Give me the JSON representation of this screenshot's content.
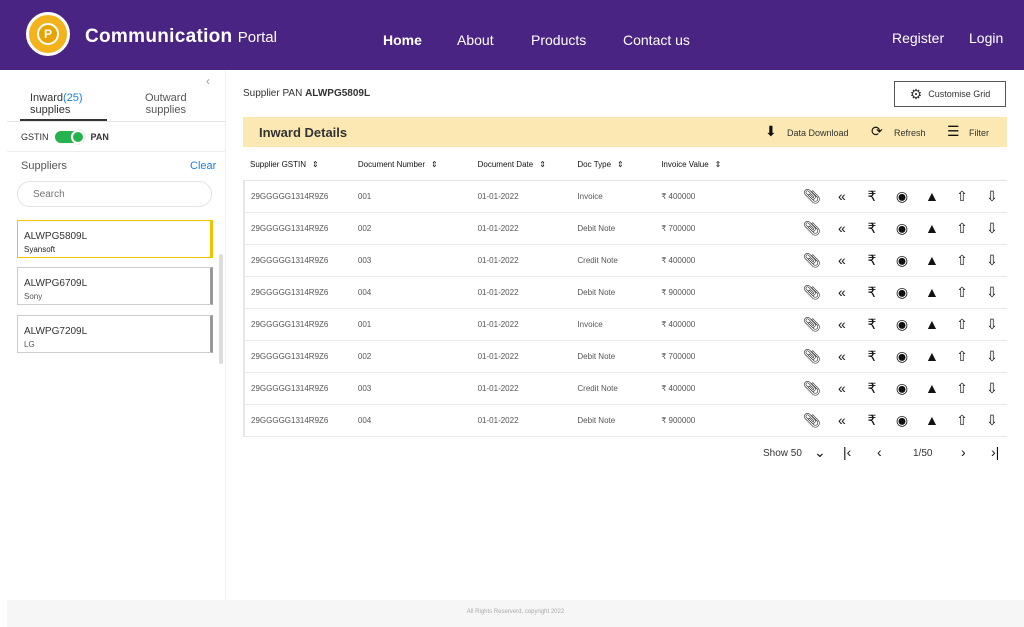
{
  "header": {
    "logo_letter": "P",
    "brand_bold": "Communication",
    "brand_rest": "Portal",
    "nav": [
      "Home",
      "About",
      "Products",
      "Contact us"
    ],
    "register": "Register",
    "login": "Login"
  },
  "sidebar": {
    "collapse_icon": "chevron-left-icon",
    "tab_inward": "Inward",
    "tab_inward_count": "(25)",
    "tab_inward_sub": "supplies",
    "tab_outward": "Outward",
    "tab_outward_sub": "supplies",
    "toggle_left": "GSTIN",
    "toggle_right": "PAN",
    "suppliers_label": "Suppliers",
    "clear_label": "Clear",
    "search_placeholder": "Search",
    "cards": [
      {
        "pan": "ALWPG5809L",
        "name": "Syansoft"
      },
      {
        "pan": "ALWPG6709L",
        "name": "Sony"
      },
      {
        "pan": "ALWPG7209L",
        "name": "LG"
      }
    ]
  },
  "main": {
    "supplier_pan_label": "Supplier PAN",
    "supplier_pan_value": "ALWPG5809L",
    "customise_label": "Customise Grid",
    "section_title": "Inward Details",
    "data_download": "Data Download",
    "refresh": "Refresh",
    "filter": "Filter",
    "columns": [
      "Supplier GSTIN",
      "Document Number",
      "Document Date",
      "Doc Type",
      "Invoice Value"
    ],
    "rows": [
      {
        "gstin": "29GGGGG1314R9Z6",
        "doc_no": "001",
        "date": "01-01-2022",
        "type": "Invoice",
        "value": "₹ 400000"
      },
      {
        "gstin": "29GGGGG1314R9Z6",
        "doc_no": "002",
        "date": "01-01-2022",
        "type": "Debit Note",
        "value": "₹ 700000"
      },
      {
        "gstin": "29GGGGG1314R9Z6",
        "doc_no": "003",
        "date": "01-01-2022",
        "type": "Credit Note",
        "value": "₹ 400000"
      },
      {
        "gstin": "29GGGGG1314R9Z6",
        "doc_no": "004",
        "date": "01-01-2022",
        "type": "Debit Note",
        "value": "₹ 900000"
      },
      {
        "gstin": "29GGGGG1314R9Z6",
        "doc_no": "001",
        "date": "01-01-2022",
        "type": "Invoice",
        "value": "₹ 400000"
      },
      {
        "gstin": "29GGGGG1314R9Z6",
        "doc_no": "002",
        "date": "01-01-2022",
        "type": "Debit Note",
        "value": "₹ 700000"
      },
      {
        "gstin": "29GGGGG1314R9Z6",
        "doc_no": "003",
        "date": "01-01-2022",
        "type": "Credit Note",
        "value": "₹ 400000"
      },
      {
        "gstin": "29GGGGG1314R9Z6",
        "doc_no": "004",
        "date": "01-01-2022",
        "type": "Debit Note",
        "value": "₹ 900000"
      }
    ],
    "row_icons": [
      "attachment-icon",
      "reply-all-icon",
      "rupee-icon",
      "view-icon",
      "notification-bell-icon",
      "upload-icon",
      "download-icon"
    ],
    "pager": {
      "show_label": "Show 50",
      "page": "1/50"
    }
  },
  "footer": {
    "text": "All Rights Reserverd, copyright 2022"
  },
  "colors": {
    "header_bg": "#4a2483",
    "accent_yellow": "#f2c300",
    "toolbar_bg": "#fbe8b2",
    "toggle_green": "#26b24c",
    "link_blue": "#1a7fe0"
  }
}
